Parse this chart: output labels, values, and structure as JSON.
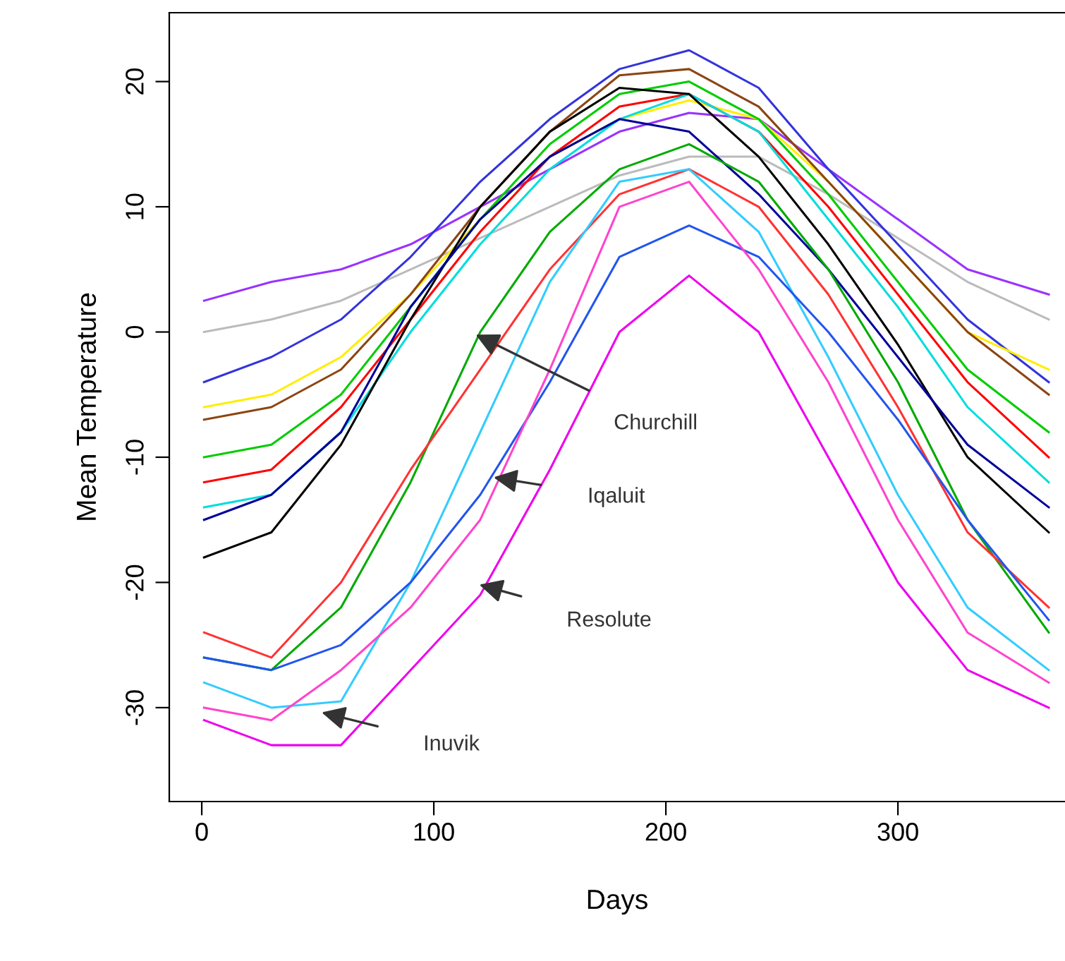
{
  "chart_data": {
    "type": "line",
    "xlabel": "Days",
    "ylabel": "Mean Temperature",
    "x": [
      1,
      30,
      60,
      90,
      120,
      150,
      180,
      210,
      240,
      270,
      300,
      330,
      365
    ],
    "xlim": [
      -14,
      372
    ],
    "ylim": [
      -37.5,
      25.5
    ],
    "xticks": [
      0,
      100,
      200,
      300
    ],
    "yticks": [
      -30,
      -20,
      -10,
      0,
      10,
      20
    ],
    "grid": false,
    "legend": false,
    "marker": "none",
    "line_style": "solid",
    "series": [
      {
        "color": "#9933ff",
        "values": [
          2.5,
          4,
          5,
          7,
          10,
          13,
          16,
          17.5,
          17,
          13,
          9,
          5,
          3
        ]
      },
      {
        "color": "#bbbbbb",
        "values": [
          0,
          1,
          2.5,
          5,
          7.5,
          10,
          12.5,
          14,
          14,
          11,
          7.5,
          4,
          1
        ]
      },
      {
        "color": "#3333dd",
        "values": [
          -4,
          -2,
          1,
          6,
          12,
          17,
          21,
          22.5,
          19.5,
          13,
          7,
          1,
          -4
        ]
      },
      {
        "color": "#ffee00",
        "values": [
          -6,
          -5,
          -2,
          3,
          9,
          14,
          17,
          18.5,
          17,
          12,
          6,
          0,
          -3
        ]
      },
      {
        "color": "#8b4513",
        "values": [
          -7,
          -6,
          -3,
          3,
          10,
          16,
          20.5,
          21,
          18,
          12,
          6,
          0,
          -5
        ]
      },
      {
        "color": "#00cc00",
        "values": [
          -10,
          -9,
          -5,
          2,
          9,
          15,
          19,
          20,
          17,
          11,
          4,
          -3,
          -8
        ]
      },
      {
        "color": "#ff0000",
        "values": [
          -12,
          -11,
          -6,
          1,
          8,
          14,
          18,
          19,
          16,
          10,
          3,
          -4,
          -10
        ]
      },
      {
        "color": "#00dddd",
        "values": [
          -14,
          -13,
          -8,
          0,
          7,
          13,
          17,
          19,
          16,
          9,
          2,
          -6,
          -12
        ]
      },
      {
        "color": "#000000",
        "values": [
          -18,
          -16,
          -9,
          1,
          10,
          16,
          19.5,
          19,
          14,
          7,
          -1,
          -10,
          -16
        ]
      },
      {
        "color": "#000099",
        "values": [
          -15,
          -13,
          -8,
          2,
          9,
          14,
          17,
          16,
          11,
          5,
          -2,
          -9,
          -14
        ]
      },
      {
        "color": "#00aa00",
        "values": [
          -26,
          -27,
          -22,
          -12,
          0,
          8,
          13,
          15,
          12,
          5,
          -4,
          -15,
          -24
        ]
      },
      {
        "color": "#ff3333",
        "values": [
          -24,
          -26,
          -20,
          -11,
          -3,
          5,
          11,
          13,
          10,
          3,
          -6,
          -16,
          -22
        ]
      },
      {
        "color": "#33ccff",
        "values": [
          -28,
          -30,
          -29.5,
          -20,
          -8,
          4,
          12,
          13,
          8,
          -2,
          -13,
          -22,
          -27
        ]
      },
      {
        "color": "#2255ee",
        "values": [
          -26,
          -27,
          -25,
          -20,
          -13,
          -4,
          6,
          8.5,
          6,
          0,
          -7,
          -15,
          -23
        ]
      },
      {
        "color": "#ff44cc",
        "values": [
          -30,
          -31,
          -27,
          -22,
          -15,
          -3,
          10,
          12,
          5,
          -4,
          -15,
          -24,
          -28
        ]
      },
      {
        "color": "#ee00ee",
        "values": [
          -31,
          -33,
          -33,
          -27,
          -21,
          -11,
          0,
          4.5,
          0,
          -10,
          -20,
          -27,
          -30
        ]
      }
    ],
    "annotations": [
      "Churchill",
      "Iqaluit",
      "Resolute",
      "Inuvik"
    ]
  }
}
